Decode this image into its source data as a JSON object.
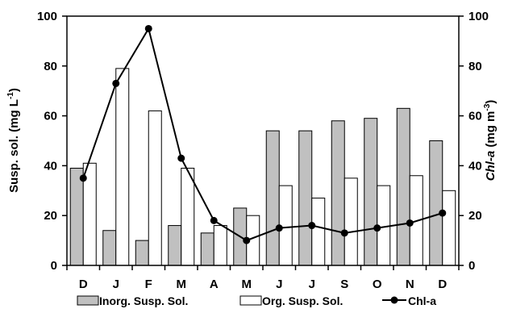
{
  "chart_data": {
    "type": "bar",
    "categories": [
      "D",
      "J",
      "F",
      "M",
      "A",
      "M",
      "J",
      "J",
      "S",
      "O",
      "N",
      "D"
    ],
    "series": [
      {
        "name": "Inorg. Susp. Sol.",
        "kind": "bar",
        "axis": "left",
        "color": "#c0c0c0",
        "values": [
          39,
          14,
          10,
          16,
          13,
          23,
          54,
          54,
          58,
          59,
          63,
          50
        ]
      },
      {
        "name": "Org. Susp. Sol.",
        "kind": "bar",
        "axis": "left",
        "color": "#ffffff",
        "values": [
          41,
          79,
          62,
          39,
          16,
          20,
          32,
          27,
          35,
          32,
          36,
          30
        ]
      },
      {
        "name": "Chl-a",
        "kind": "line",
        "axis": "right",
        "color": "#000000",
        "values": [
          35,
          73,
          95,
          43,
          18,
          10,
          15,
          16,
          13,
          15,
          17,
          21
        ]
      }
    ],
    "ylabel_left": "Susp. sol. (mg L-1)",
    "ylabel_left_parts": {
      "main": "Susp. sol. (mg L",
      "sup": "-1",
      "tail": ")"
    },
    "ylabel_right": "Chl-a (mg m-3)",
    "ylabel_right_parts": {
      "italic": "Chl-a",
      "main": " (mg m",
      "sup": "-3",
      "tail": ")"
    },
    "ylim_left": [
      0,
      100
    ],
    "ylim_right": [
      0,
      100
    ],
    "yticks": [
      0,
      20,
      40,
      60,
      80,
      100
    ],
    "grid": false,
    "legend_position": "bottom"
  }
}
